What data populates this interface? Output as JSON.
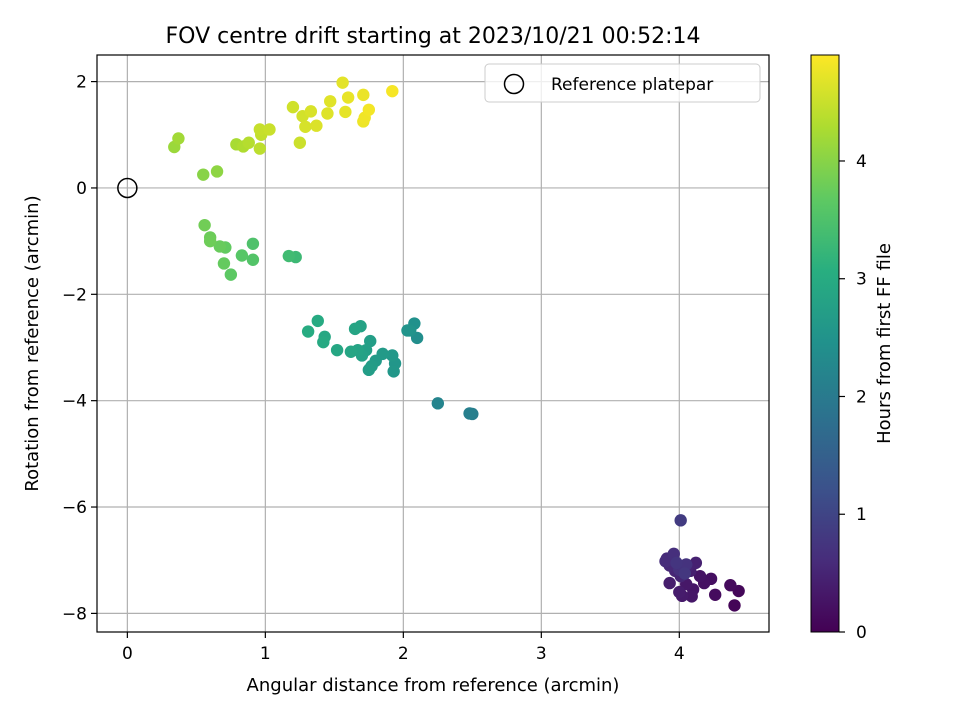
{
  "chart_data": {
    "type": "scatter",
    "title": "FOV centre drift starting at 2023/10/21 00:52:14",
    "xlabel": "Angular distance from reference (arcmin)",
    "ylabel": "Rotation from reference (arcmin)",
    "xlim": [
      -0.22,
      4.65
    ],
    "ylim": [
      -8.35,
      2.5
    ],
    "xticks": [
      0,
      1,
      2,
      3,
      4
    ],
    "yticks": [
      -8,
      -6,
      -4,
      -2,
      0,
      2
    ],
    "xtick_labels": [
      "0",
      "1",
      "2",
      "3",
      "4"
    ],
    "ytick_labels": [
      "−8",
      "−6",
      "−4",
      "−2",
      "0",
      "2"
    ],
    "grid": true,
    "legend": {
      "position": "top-right",
      "entries": [
        {
          "label": "Reference platepar",
          "marker": "open-circle"
        }
      ]
    },
    "reference_point": {
      "x": 0,
      "y": 0
    },
    "colorbar": {
      "label": "Hours from first FF file",
      "colormap": "viridis",
      "range": [
        0,
        4.9
      ],
      "ticks": [
        0,
        1,
        2,
        3,
        4
      ],
      "tick_labels": [
        "0",
        "1",
        "2",
        "3",
        "4"
      ]
    },
    "points": [
      {
        "x": 4.4,
        "y": -7.85,
        "c": 0.05
      },
      {
        "x": 4.43,
        "y": -7.58,
        "c": 0.08
      },
      {
        "x": 4.37,
        "y": -7.47,
        "c": 0.12
      },
      {
        "x": 4.26,
        "y": -7.65,
        "c": 0.15
      },
      {
        "x": 4.23,
        "y": -7.35,
        "c": 0.2
      },
      {
        "x": 4.18,
        "y": -7.43,
        "c": 0.22
      },
      {
        "x": 4.15,
        "y": -7.3,
        "c": 0.25
      },
      {
        "x": 4.1,
        "y": -7.55,
        "c": 0.28
      },
      {
        "x": 4.09,
        "y": -7.68,
        "c": 0.3
      },
      {
        "x": 4.05,
        "y": -7.45,
        "c": 0.32
      },
      {
        "x": 4.02,
        "y": -7.67,
        "c": 0.35
      },
      {
        "x": 4.0,
        "y": -7.6,
        "c": 0.38
      },
      {
        "x": 3.93,
        "y": -7.43,
        "c": 0.4
      },
      {
        "x": 4.08,
        "y": -7.2,
        "c": 0.42
      },
      {
        "x": 4.12,
        "y": -7.05,
        "c": 0.45
      },
      {
        "x": 4.06,
        "y": -7.12,
        "c": 0.48
      },
      {
        "x": 4.01,
        "y": -7.3,
        "c": 0.5
      },
      {
        "x": 3.97,
        "y": -7.2,
        "c": 0.52
      },
      {
        "x": 3.93,
        "y": -7.1,
        "c": 0.55
      },
      {
        "x": 3.95,
        "y": -7.0,
        "c": 0.58
      },
      {
        "x": 3.91,
        "y": -6.97,
        "c": 0.6
      },
      {
        "x": 3.9,
        "y": -7.02,
        "c": 0.62
      },
      {
        "x": 3.96,
        "y": -6.88,
        "c": 0.65
      },
      {
        "x": 4.0,
        "y": -7.18,
        "c": 0.68
      },
      {
        "x": 4.03,
        "y": -7.12,
        "c": 0.7
      },
      {
        "x": 4.05,
        "y": -7.08,
        "c": 0.72
      },
      {
        "x": 3.98,
        "y": -7.05,
        "c": 0.75
      },
      {
        "x": 4.04,
        "y": -7.25,
        "c": 0.78
      },
      {
        "x": 4.01,
        "y": -6.25,
        "c": 0.85
      },
      {
        "x": 2.5,
        "y": -4.25,
        "c": 2.05
      },
      {
        "x": 2.48,
        "y": -4.24,
        "c": 2.1
      },
      {
        "x": 2.25,
        "y": -4.05,
        "c": 2.2
      },
      {
        "x": 2.1,
        "y": -2.82,
        "c": 2.4
      },
      {
        "x": 2.08,
        "y": -2.55,
        "c": 2.45
      },
      {
        "x": 2.05,
        "y": -2.68,
        "c": 2.5
      },
      {
        "x": 2.03,
        "y": -2.68,
        "c": 2.52
      },
      {
        "x": 1.94,
        "y": -3.3,
        "c": 2.55
      },
      {
        "x": 1.93,
        "y": -3.45,
        "c": 2.58
      },
      {
        "x": 1.92,
        "y": -3.15,
        "c": 2.6
      },
      {
        "x": 1.85,
        "y": -3.12,
        "c": 2.63
      },
      {
        "x": 1.8,
        "y": -3.25,
        "c": 2.65
      },
      {
        "x": 1.77,
        "y": -3.35,
        "c": 2.68
      },
      {
        "x": 1.75,
        "y": -3.42,
        "c": 2.7
      },
      {
        "x": 1.76,
        "y": -2.88,
        "c": 2.72
      },
      {
        "x": 1.73,
        "y": -3.05,
        "c": 2.75
      },
      {
        "x": 1.7,
        "y": -3.15,
        "c": 2.78
      },
      {
        "x": 1.69,
        "y": -2.6,
        "c": 2.8
      },
      {
        "x": 1.67,
        "y": -3.05,
        "c": 2.82
      },
      {
        "x": 1.65,
        "y": -2.65,
        "c": 2.85
      },
      {
        "x": 1.62,
        "y": -3.08,
        "c": 2.87
      },
      {
        "x": 1.52,
        "y": -3.05,
        "c": 2.9
      },
      {
        "x": 1.43,
        "y": -2.8,
        "c": 2.92
      },
      {
        "x": 1.42,
        "y": -2.9,
        "c": 2.95
      },
      {
        "x": 1.38,
        "y": -2.5,
        "c": 2.97
      },
      {
        "x": 1.31,
        "y": -2.7,
        "c": 3.0
      },
      {
        "x": 1.22,
        "y": -1.3,
        "c": 3.3
      },
      {
        "x": 1.17,
        "y": -1.28,
        "c": 3.35
      },
      {
        "x": 0.91,
        "y": -1.05,
        "c": 3.5
      },
      {
        "x": 0.91,
        "y": -1.35,
        "c": 3.55
      },
      {
        "x": 0.83,
        "y": -1.27,
        "c": 3.6
      },
      {
        "x": 0.75,
        "y": -1.63,
        "c": 3.65
      },
      {
        "x": 0.71,
        "y": -1.12,
        "c": 3.7
      },
      {
        "x": 0.7,
        "y": -1.42,
        "c": 3.72
      },
      {
        "x": 0.67,
        "y": -1.1,
        "c": 3.75
      },
      {
        "x": 0.6,
        "y": -0.93,
        "c": 3.78
      },
      {
        "x": 0.6,
        "y": -1.0,
        "c": 3.8
      },
      {
        "x": 0.56,
        "y": -0.7,
        "c": 3.82
      },
      {
        "x": 0.55,
        "y": 0.25,
        "c": 4.0
      },
      {
        "x": 0.65,
        "y": 0.31,
        "c": 4.05
      },
      {
        "x": 0.34,
        "y": 0.77,
        "c": 4.15
      },
      {
        "x": 0.37,
        "y": 0.93,
        "c": 4.2
      },
      {
        "x": 0.79,
        "y": 0.82,
        "c": 4.25
      },
      {
        "x": 0.84,
        "y": 0.78,
        "c": 4.3
      },
      {
        "x": 0.88,
        "y": 0.85,
        "c": 4.35
      },
      {
        "x": 0.96,
        "y": 0.74,
        "c": 4.4
      },
      {
        "x": 0.97,
        "y": 1.0,
        "c": 4.45
      },
      {
        "x": 0.96,
        "y": 1.1,
        "c": 4.48
      },
      {
        "x": 1.03,
        "y": 1.1,
        "c": 4.5
      },
      {
        "x": 1.25,
        "y": 0.85,
        "c": 4.52
      },
      {
        "x": 1.2,
        "y": 1.52,
        "c": 4.55
      },
      {
        "x": 1.27,
        "y": 1.35,
        "c": 4.57
      },
      {
        "x": 1.29,
        "y": 1.15,
        "c": 4.6
      },
      {
        "x": 1.33,
        "y": 1.44,
        "c": 4.62
      },
      {
        "x": 1.37,
        "y": 1.17,
        "c": 4.64
      },
      {
        "x": 1.45,
        "y": 1.4,
        "c": 4.66
      },
      {
        "x": 1.47,
        "y": 1.63,
        "c": 4.68
      },
      {
        "x": 1.56,
        "y": 1.98,
        "c": 4.7
      },
      {
        "x": 1.58,
        "y": 1.43,
        "c": 4.72
      },
      {
        "x": 1.6,
        "y": 1.7,
        "c": 4.74
      },
      {
        "x": 1.71,
        "y": 1.75,
        "c": 4.76
      },
      {
        "x": 1.71,
        "y": 1.25,
        "c": 4.78
      },
      {
        "x": 1.72,
        "y": 1.32,
        "c": 4.8
      },
      {
        "x": 1.75,
        "y": 1.47,
        "c": 4.82
      },
      {
        "x": 1.92,
        "y": 1.82,
        "c": 4.85
      }
    ]
  }
}
